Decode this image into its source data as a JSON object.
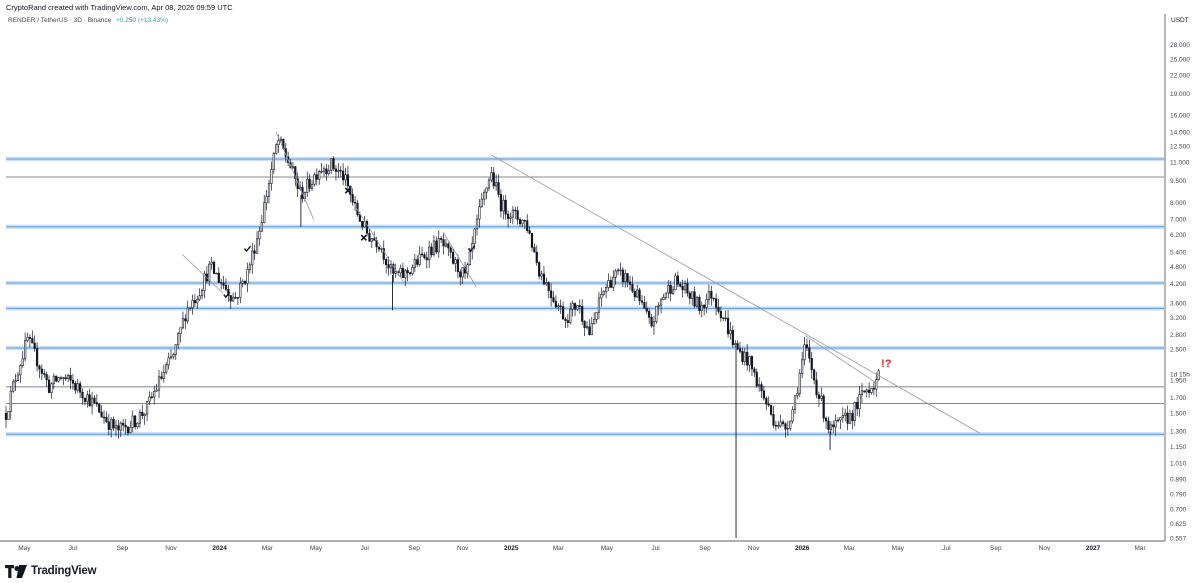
{
  "header": {
    "credit": "CryptoRand created with TradingView.com, Apr 08, 2026 09:59 UTC"
  },
  "symbol": {
    "name": "RENDER / TetherUS · 3D · Binance",
    "change": "+0.250 (+13.43%)"
  },
  "footer": {
    "brand": "TradingView"
  },
  "colors": {
    "candle": "#131722",
    "zone": "#5b9bd5",
    "zone_glow": "#cfe0f5",
    "trendline": "#9598a1",
    "annotation_red": "#e0202e",
    "axis_text": "#434651"
  },
  "chart_data": {
    "type": "candlestick",
    "scale": "log",
    "price_unit": "USDT",
    "countdown_label": "1d 15h",
    "ylim": [
      0.557,
      32.0
    ],
    "xlim": [
      "2023-04-08",
      "2027-03-31"
    ],
    "y_ticks": [
      "28.000",
      "25.000",
      "22.000",
      "19.000",
      "16.000",
      "14.000",
      "12.500",
      "11.000",
      "9.500",
      "8.000",
      "7.000",
      "6.200",
      "5.400",
      "4.800",
      "4.200",
      "3.600",
      "3.200",
      "2.800",
      "2.500",
      "2.200",
      "1.950",
      "1.700",
      "1.500",
      "1.300",
      "1.150",
      "1.010",
      "0.890",
      "0.790",
      "0.700",
      "0.625",
      "0.557"
    ],
    "x_ticks": [
      {
        "label": "May",
        "date": "2023-05-01"
      },
      {
        "label": "Jul",
        "date": "2023-07-01"
      },
      {
        "label": "Sep",
        "date": "2023-09-01"
      },
      {
        "label": "Nov",
        "date": "2023-11-01"
      },
      {
        "label": "2024",
        "date": "2024-01-01",
        "year": true
      },
      {
        "label": "Mar",
        "date": "2024-03-01"
      },
      {
        "label": "May",
        "date": "2024-05-01"
      },
      {
        "label": "Jul",
        "date": "2024-07-01"
      },
      {
        "label": "Sep",
        "date": "2024-09-01"
      },
      {
        "label": "Nov",
        "date": "2024-11-01"
      },
      {
        "label": "2025",
        "date": "2025-01-01",
        "year": true
      },
      {
        "label": "Mar",
        "date": "2025-03-01"
      },
      {
        "label": "May",
        "date": "2025-05-01"
      },
      {
        "label": "Jul",
        "date": "2025-07-01"
      },
      {
        "label": "Sep",
        "date": "2025-09-01"
      },
      {
        "label": "Nov",
        "date": "2025-11-01"
      },
      {
        "label": "2026",
        "date": "2026-01-01",
        "year": true
      },
      {
        "label": "Mar",
        "date": "2026-03-01"
      },
      {
        "label": "May",
        "date": "2026-05-01"
      },
      {
        "label": "Jul",
        "date": "2026-07-01"
      },
      {
        "label": "Sep",
        "date": "2026-09-01"
      },
      {
        "label": "Nov",
        "date": "2026-11-01"
      },
      {
        "label": "2027",
        "date": "2027-01-01",
        "year": true
      },
      {
        "label": "Mar",
        "date": "2027-03-01"
      }
    ],
    "horizontal_zones": [
      11.3,
      6.6,
      4.22,
      3.45,
      2.52,
      1.27
    ],
    "horizontal_lines": [
      9.8,
      1.85,
      1.62
    ],
    "trendlines": [
      {
        "from": [
          "2024-12-06",
          11.7
        ],
        "to": [
          "2026-08-12",
          1.28
        ]
      },
      {
        "from": [
          "2026-01-05",
          2.78
        ],
        "to": [
          "2026-04-05",
          1.9
        ]
      },
      {
        "from": [
          "2024-03-12",
          14.0
        ],
        "to": [
          "2024-04-28",
          7.0
        ]
      },
      {
        "from": [
          "2024-06-20",
          7.7
        ],
        "to": [
          "2024-08-20",
          4.2
        ]
      },
      {
        "from": [
          "2024-10-08",
          6.3
        ],
        "to": [
          "2024-11-18",
          4.1
        ]
      },
      {
        "from": [
          "2023-11-15",
          5.3
        ],
        "to": [
          "2024-01-05",
          3.9
        ]
      }
    ],
    "markers": [
      {
        "symbol": "check",
        "date": "2024-01-10",
        "price": 3.85
      },
      {
        "symbol": "check",
        "date": "2024-02-05",
        "price": 5.55
      },
      {
        "symbol": "cross",
        "date": "2024-06-10",
        "price": 8.8
      },
      {
        "symbol": "cross",
        "date": "2024-06-30",
        "price": 6.05
      },
      {
        "symbol": "check",
        "date": "2024-11-12",
        "price": 5.55
      }
    ],
    "annotation": {
      "text": "!?",
      "date": "2026-04-10",
      "price": 2.17
    },
    "price_path": [
      [
        "2023-04-08",
        1.5
      ],
      [
        "2023-04-20",
        2.0
      ],
      [
        "2023-05-05",
        2.7
      ],
      [
        "2023-05-20",
        2.2
      ],
      [
        "2023-06-01",
        1.85
      ],
      [
        "2023-06-15",
        2.0
      ],
      [
        "2023-07-01",
        1.9
      ],
      [
        "2023-07-20",
        1.7
      ],
      [
        "2023-08-10",
        1.45
      ],
      [
        "2023-08-25",
        1.3
      ],
      [
        "2023-09-15",
        1.4
      ],
      [
        "2023-10-01",
        1.55
      ],
      [
        "2023-10-20",
        2.0
      ],
      [
        "2023-11-05",
        2.4
      ],
      [
        "2023-11-20",
        3.4
      ],
      [
        "2023-12-05",
        3.9
      ],
      [
        "2023-12-20",
        4.8
      ],
      [
        "2024-01-05",
        4.2
      ],
      [
        "2024-01-20",
        3.7
      ],
      [
        "2024-02-05",
        4.6
      ],
      [
        "2024-02-20",
        6.5
      ],
      [
        "2024-03-05",
        10.0
      ],
      [
        "2024-03-14",
        13.2
      ],
      [
        "2024-03-28",
        11.0
      ],
      [
        "2024-04-12",
        8.5
      ],
      [
        "2024-04-25",
        9.5
      ],
      [
        "2024-05-05",
        10.5
      ],
      [
        "2024-05-20",
        10.8
      ],
      [
        "2024-06-05",
        9.8
      ],
      [
        "2024-06-20",
        7.5
      ],
      [
        "2024-07-05",
        6.2
      ],
      [
        "2024-07-20",
        5.8
      ],
      [
        "2024-08-05",
        4.5
      ],
      [
        "2024-08-20",
        4.5
      ],
      [
        "2024-09-05",
        5.0
      ],
      [
        "2024-09-20",
        5.5
      ],
      [
        "2024-10-05",
        5.8
      ],
      [
        "2024-10-20",
        5.0
      ],
      [
        "2024-11-05",
        4.4
      ],
      [
        "2024-11-20",
        7.0
      ],
      [
        "2024-12-06",
        10.2
      ],
      [
        "2024-12-20",
        7.8
      ],
      [
        "2025-01-05",
        7.2
      ],
      [
        "2025-01-20",
        6.8
      ],
      [
        "2025-02-05",
        4.7
      ],
      [
        "2025-02-20",
        3.9
      ],
      [
        "2025-03-10",
        3.2
      ],
      [
        "2025-03-25",
        3.6
      ],
      [
        "2025-04-10",
        2.8
      ],
      [
        "2025-04-25",
        3.9
      ],
      [
        "2025-05-10",
        4.5
      ],
      [
        "2025-05-25",
        4.4
      ],
      [
        "2025-06-10",
        3.7
      ],
      [
        "2025-06-25",
        3.0
      ],
      [
        "2025-07-10",
        3.8
      ],
      [
        "2025-07-25",
        4.3
      ],
      [
        "2025-08-10",
        3.9
      ],
      [
        "2025-08-25",
        3.5
      ],
      [
        "2025-09-10",
        3.9
      ],
      [
        "2025-09-25",
        3.2
      ],
      [
        "2025-10-10",
        2.5
      ],
      [
        "2025-10-25",
        2.3
      ],
      [
        "2025-11-10",
        1.8
      ],
      [
        "2025-11-25",
        1.45
      ],
      [
        "2025-12-10",
        1.32
      ],
      [
        "2025-12-20",
        1.55
      ],
      [
        "2026-01-05",
        2.55
      ],
      [
        "2026-01-20",
        1.8
      ],
      [
        "2026-02-05",
        1.3
      ],
      [
        "2026-02-20",
        1.4
      ],
      [
        "2026-03-05",
        1.5
      ],
      [
        "2026-03-20",
        1.78
      ],
      [
        "2026-04-08",
        2.0
      ]
    ],
    "spikes": [
      {
        "date": "2024-08-05",
        "low": 3.4
      },
      {
        "date": "2025-10-10",
        "low": 0.557
      },
      {
        "date": "2026-02-05",
        "low": 1.12
      },
      {
        "date": "2024-04-12",
        "low": 6.6
      }
    ]
  }
}
